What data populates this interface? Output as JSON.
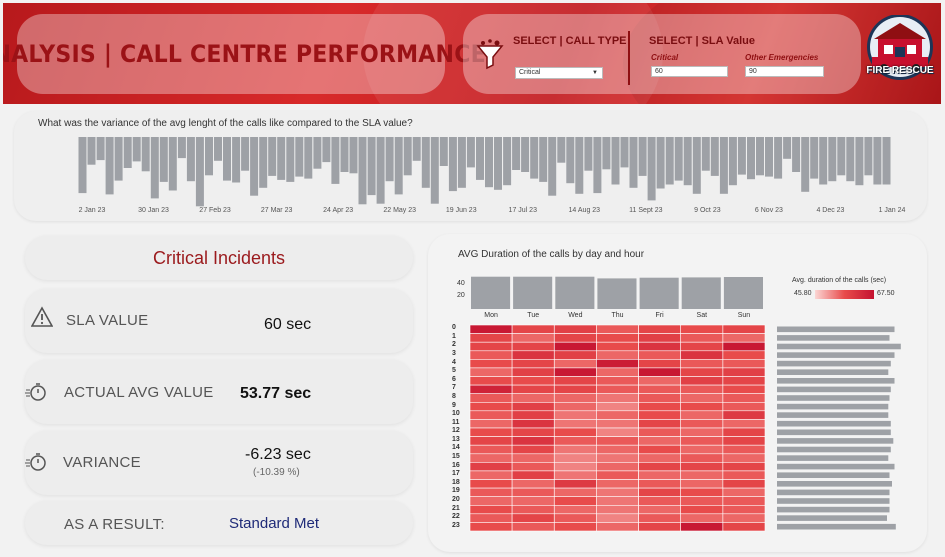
{
  "header": {
    "title": "ANALYSIS | CALL CENTRE PERFORMANCE",
    "call_type_label": "SELECT | CALL TYPE",
    "call_type_value": "Critical",
    "sla_label": "SELECT | SLA Value",
    "critical_label": "Critical",
    "critical_value": "60",
    "other_label": "Other Emergencies",
    "other_value": "90",
    "logo_text": "FIRE RESCUE"
  },
  "variance": {
    "question": "What was the variance of the avg lenght of the calls like compared to the SLA value?",
    "axis_labels": [
      "2 Jan 23",
      "30 Jan 23",
      "27 Feb 23",
      "27 Mar 23",
      "24 Apr 23",
      "22 May 23",
      "19 Jun 23",
      "17 Jul 23",
      "14 Aug 23",
      "11 Sept 23",
      "9 Oct 23",
      "6 Nov 23",
      "4 Dec 23",
      "1 Jan 24"
    ],
    "bars": [
      8.5,
      4.2,
      3.5,
      8.7,
      6.6,
      4.7,
      3.7,
      5.2,
      9.3,
      6.8,
      8.1,
      3.2,
      6.7,
      10.5,
      5.8,
      3.6,
      6.6,
      6.9,
      5.1,
      8.9,
      7.7,
      5.9,
      6.5,
      6.8,
      6.0,
      6.3,
      4.8,
      3.8,
      7.1,
      5.3,
      5.5,
      10.2,
      8.8,
      10.1,
      6.7,
      8.7,
      5.8,
      3.6,
      7.7,
      10.1,
      4.4,
      8.2,
      7.7,
      4.6,
      6.5,
      7.6,
      8.0,
      7.3,
      5.0,
      5.3,
      6.3,
      6.8,
      8.9,
      3.9,
      7.0,
      8.6,
      5.1,
      8.5,
      4.9,
      7.2,
      4.6,
      7.7,
      5.9,
      9.6,
      7.8,
      7.2,
      6.6,
      7.3,
      8.6,
      5.1,
      5.9,
      8.6,
      7.3,
      5.7,
      6.4,
      5.8,
      6.0,
      6.3,
      3.3,
      5.3,
      8.3,
      6.3,
      7.2,
      6.7,
      5.8,
      6.7,
      7.3,
      5.8,
      7.2,
      7.2
    ]
  },
  "kpi": {
    "title": "Critical Incidents",
    "sla_label": "SLA VALUE",
    "sla_value": "60 sec",
    "actual_label": "ACTUAL AVG VALUE",
    "actual_value": "53.77 sec",
    "variance_label": "VARIANCE",
    "variance_value": "-6.23 sec",
    "variance_pct": "(-10.39 %)",
    "result_label": "AS A RESULT:",
    "result_value": "Standard Met"
  },
  "heatmap": {
    "title": "AVG Duration of the calls by day and hour",
    "legend_title": "Avg. duration of the calls (sec)",
    "legend_min": "45.80",
    "legend_max": "67.50",
    "days": [
      "Mon",
      "Tue",
      "Wed",
      "Thu",
      "Fri",
      "Sat",
      "Sun"
    ],
    "day_axis_ticks": [
      "40",
      "20"
    ],
    "day_bars": [
      0.95,
      0.95,
      0.95,
      0.9,
      0.92,
      0.93,
      0.94
    ],
    "hours": [
      "0",
      "1",
      "2",
      "3",
      "4",
      "5",
      "6",
      "7",
      "8",
      "9",
      "10",
      "11",
      "12",
      "13",
      "14",
      "15",
      "16",
      "17",
      "18",
      "19",
      "20",
      "21",
      "22",
      "23"
    ],
    "hour_bars": [
      0.94,
      0.9,
      0.99,
      0.94,
      0.91,
      0.89,
      0.94,
      0.91,
      0.9,
      0.89,
      0.89,
      0.91,
      0.91,
      0.93,
      0.91,
      0.89,
      0.94,
      0.9,
      0.92,
      0.9,
      0.9,
      0.9,
      0.88,
      0.95
    ],
    "grid": [
      [
        0.95,
        0.55,
        0.6,
        0.45,
        0.55,
        0.5,
        0.55
      ],
      [
        0.55,
        0.4,
        0.55,
        0.5,
        0.6,
        0.45,
        0.4
      ],
      [
        0.55,
        0.55,
        0.95,
        0.5,
        0.7,
        0.55,
        0.95
      ],
      [
        0.45,
        0.7,
        0.6,
        0.4,
        0.45,
        0.7,
        0.5
      ],
      [
        0.5,
        0.55,
        0.4,
        0.9,
        0.55,
        0.45,
        0.45
      ],
      [
        0.4,
        0.6,
        0.95,
        0.4,
        0.95,
        0.55,
        0.6
      ],
      [
        0.5,
        0.5,
        0.55,
        0.45,
        0.4,
        0.6,
        0.55
      ],
      [
        0.85,
        0.55,
        0.55,
        0.45,
        0.45,
        0.45,
        0.5
      ],
      [
        0.45,
        0.4,
        0.4,
        0.35,
        0.45,
        0.4,
        0.45
      ],
      [
        0.5,
        0.6,
        0.4,
        0.3,
        0.5,
        0.5,
        0.45
      ],
      [
        0.45,
        0.6,
        0.35,
        0.4,
        0.5,
        0.4,
        0.65
      ],
      [
        0.4,
        0.7,
        0.35,
        0.35,
        0.55,
        0.45,
        0.4
      ],
      [
        0.5,
        0.55,
        0.5,
        0.3,
        0.45,
        0.4,
        0.55
      ],
      [
        0.55,
        0.7,
        0.45,
        0.45,
        0.4,
        0.45,
        0.55
      ],
      [
        0.45,
        0.55,
        0.35,
        0.4,
        0.5,
        0.4,
        0.45
      ],
      [
        0.4,
        0.4,
        0.3,
        0.35,
        0.4,
        0.45,
        0.4
      ],
      [
        0.6,
        0.45,
        0.3,
        0.4,
        0.55,
        0.55,
        0.55
      ],
      [
        0.4,
        0.6,
        0.35,
        0.45,
        0.4,
        0.4,
        0.45
      ],
      [
        0.5,
        0.4,
        0.65,
        0.4,
        0.45,
        0.4,
        0.55
      ],
      [
        0.45,
        0.45,
        0.4,
        0.35,
        0.55,
        0.5,
        0.4
      ],
      [
        0.4,
        0.4,
        0.5,
        0.35,
        0.45,
        0.45,
        0.45
      ],
      [
        0.5,
        0.45,
        0.4,
        0.35,
        0.4,
        0.5,
        0.45
      ],
      [
        0.45,
        0.55,
        0.45,
        0.3,
        0.45,
        0.4,
        0.4
      ],
      [
        0.5,
        0.45,
        0.5,
        0.4,
        0.55,
        0.95,
        0.55
      ]
    ]
  },
  "colors": {
    "accent": "#9b1a1d",
    "bar_gray": "#9ea1a6",
    "heat_low": "#fbd6d4",
    "heat_high": "#c41230"
  }
}
